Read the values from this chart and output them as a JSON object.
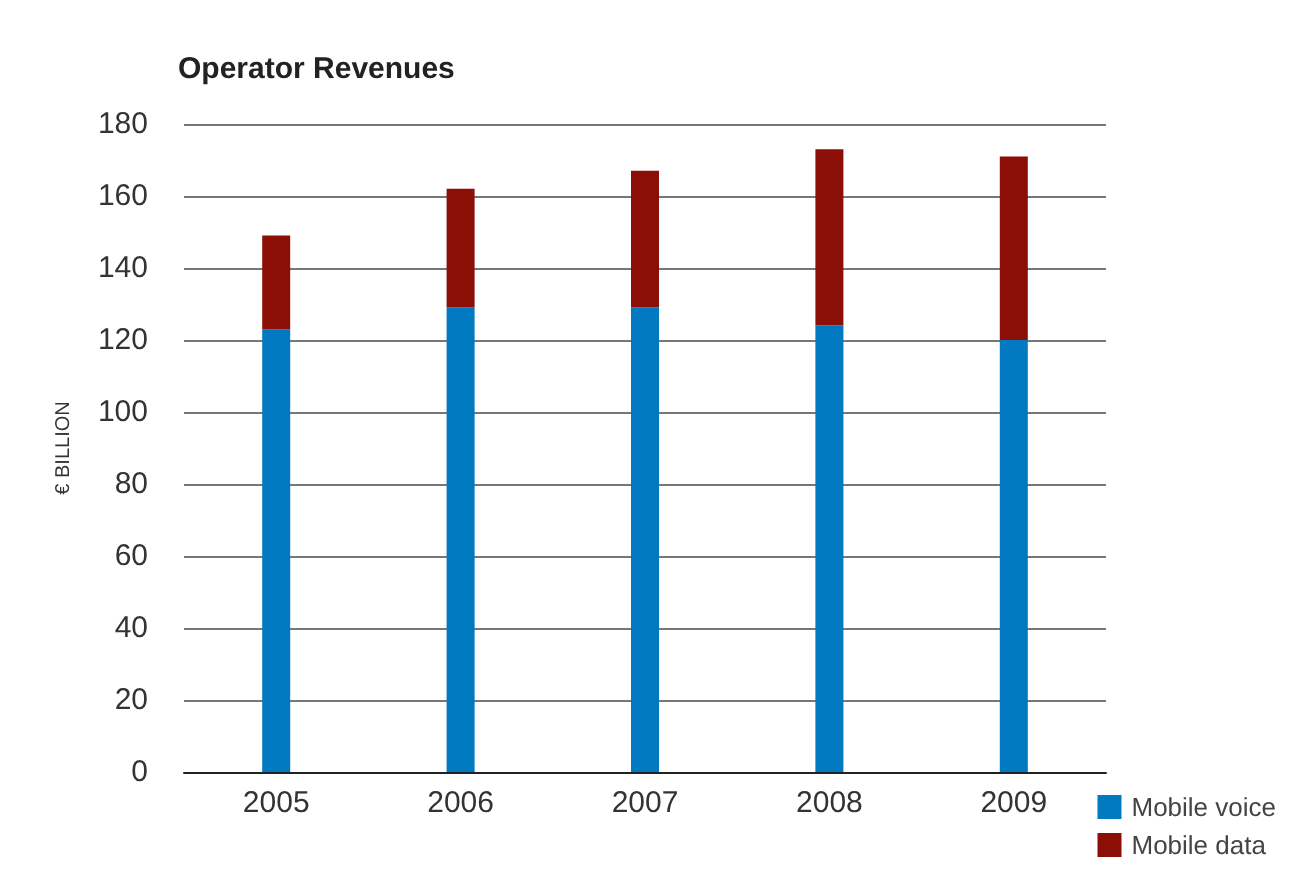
{
  "chart_data": {
    "type": "bar",
    "title": "Operator Revenues",
    "ylabel": "€ BILLION",
    "categories": [
      "2005",
      "2006",
      "2007",
      "2008",
      "2009"
    ],
    "stacked": true,
    "series": [
      {
        "name": "Mobile voice",
        "color": "#0079c1",
        "values": [
          123,
          129,
          129,
          124,
          120
        ]
      },
      {
        "name": "Mobile data",
        "color": "#8b0f06",
        "values": [
          26,
          33,
          38,
          49,
          51
        ]
      }
    ],
    "ylim": [
      0,
      180
    ],
    "yticks": [
      0,
      20,
      40,
      60,
      80,
      100,
      120,
      140,
      160,
      180
    ],
    "grid": "y",
    "legend": "bottom right"
  }
}
